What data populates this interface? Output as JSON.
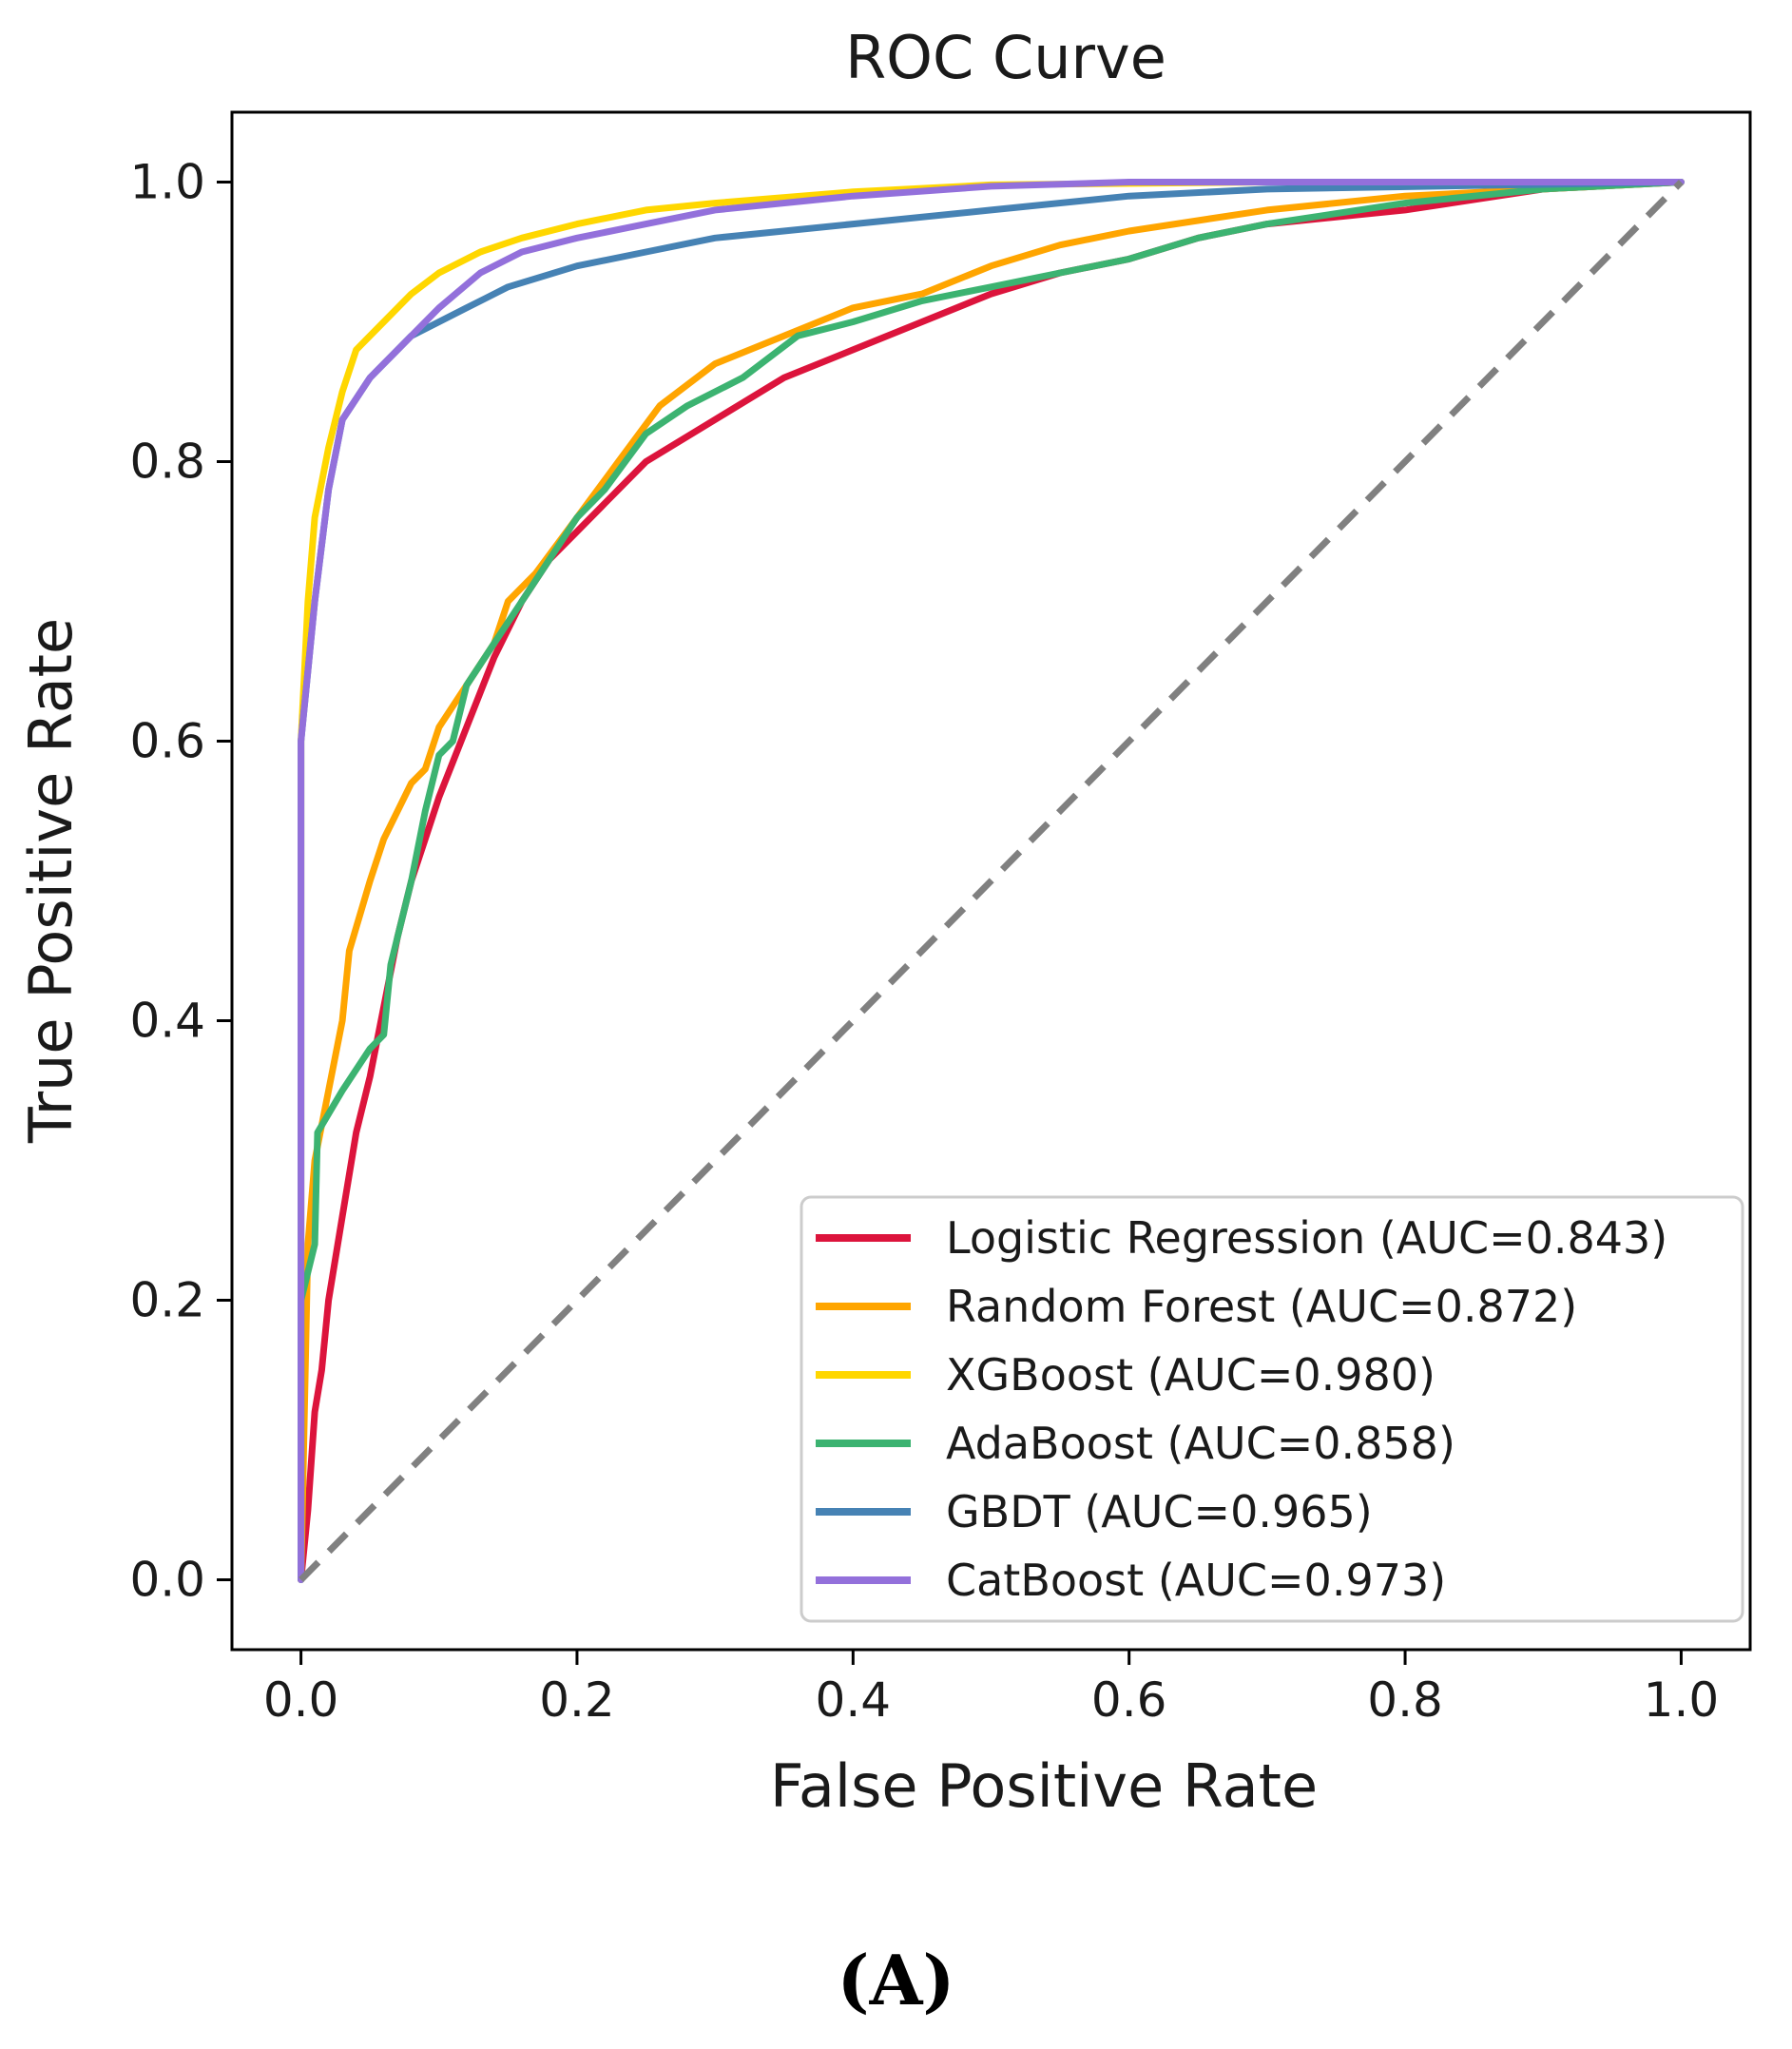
{
  "chart_data": {
    "type": "line",
    "title": "ROC Curve",
    "xlabel": "False Positive Rate",
    "ylabel": "True Positive Rate",
    "xlim": [
      -0.05,
      1.05
    ],
    "ylim": [
      -0.05,
      1.05
    ],
    "xticks": [
      "0.0",
      "0.2",
      "0.4",
      "0.6",
      "0.8",
      "1.0"
    ],
    "yticks": [
      "0.0",
      "0.2",
      "0.4",
      "0.6",
      "0.8",
      "1.0"
    ],
    "grid": false,
    "legend_position": "lower-right",
    "reference_line": {
      "name": "chance",
      "color": "#808080",
      "style": "dashed",
      "points": [
        [
          0,
          0
        ],
        [
          1,
          1
        ]
      ]
    },
    "series": [
      {
        "name": "Logistic Regression (AUC=0.843)",
        "color": "#DC143C",
        "points": [
          [
            0,
            0
          ],
          [
            0.005,
            0.05
          ],
          [
            0.01,
            0.12
          ],
          [
            0.015,
            0.15
          ],
          [
            0.02,
            0.2
          ],
          [
            0.03,
            0.26
          ],
          [
            0.04,
            0.32
          ],
          [
            0.05,
            0.36
          ],
          [
            0.06,
            0.41
          ],
          [
            0.07,
            0.46
          ],
          [
            0.08,
            0.5
          ],
          [
            0.09,
            0.53
          ],
          [
            0.1,
            0.56
          ],
          [
            0.12,
            0.61
          ],
          [
            0.14,
            0.66
          ],
          [
            0.16,
            0.7
          ],
          [
            0.18,
            0.73
          ],
          [
            0.2,
            0.75
          ],
          [
            0.22,
            0.77
          ],
          [
            0.25,
            0.8
          ],
          [
            0.3,
            0.83
          ],
          [
            0.35,
            0.86
          ],
          [
            0.4,
            0.88
          ],
          [
            0.45,
            0.9
          ],
          [
            0.5,
            0.92
          ],
          [
            0.55,
            0.935
          ],
          [
            0.6,
            0.945
          ],
          [
            0.65,
            0.96
          ],
          [
            0.7,
            0.97
          ],
          [
            0.8,
            0.98
          ],
          [
            0.9,
            0.995
          ],
          [
            1,
            1
          ]
        ]
      },
      {
        "name": "Random Forest (AUC=0.872)",
        "color": "#FFA500",
        "points": [
          [
            0,
            0
          ],
          [
            0.005,
            0.24
          ],
          [
            0.01,
            0.3
          ],
          [
            0.02,
            0.35
          ],
          [
            0.03,
            0.4
          ],
          [
            0.035,
            0.45
          ],
          [
            0.05,
            0.5
          ],
          [
            0.06,
            0.53
          ],
          [
            0.07,
            0.55
          ],
          [
            0.08,
            0.57
          ],
          [
            0.09,
            0.58
          ],
          [
            0.1,
            0.61
          ],
          [
            0.12,
            0.64
          ],
          [
            0.14,
            0.67
          ],
          [
            0.15,
            0.7
          ],
          [
            0.17,
            0.72
          ],
          [
            0.2,
            0.76
          ],
          [
            0.23,
            0.8
          ],
          [
            0.26,
            0.84
          ],
          [
            0.3,
            0.87
          ],
          [
            0.35,
            0.89
          ],
          [
            0.4,
            0.91
          ],
          [
            0.45,
            0.92
          ],
          [
            0.5,
            0.94
          ],
          [
            0.55,
            0.955
          ],
          [
            0.6,
            0.965
          ],
          [
            0.7,
            0.98
          ],
          [
            0.8,
            0.99
          ],
          [
            0.9,
            0.995
          ],
          [
            1,
            1
          ]
        ]
      },
      {
        "name": "XGBoost (AUC=0.980)",
        "color": "#FFD700",
        "points": [
          [
            0,
            0
          ],
          [
            0,
            0.6
          ],
          [
            0.005,
            0.7
          ],
          [
            0.01,
            0.76
          ],
          [
            0.02,
            0.81
          ],
          [
            0.03,
            0.85
          ],
          [
            0.04,
            0.88
          ],
          [
            0.06,
            0.9
          ],
          [
            0.08,
            0.92
          ],
          [
            0.1,
            0.935
          ],
          [
            0.13,
            0.95
          ],
          [
            0.16,
            0.96
          ],
          [
            0.2,
            0.97
          ],
          [
            0.25,
            0.98
          ],
          [
            0.3,
            0.985
          ],
          [
            0.4,
            0.993
          ],
          [
            0.5,
            0.998
          ],
          [
            0.7,
            1
          ],
          [
            1,
            1
          ]
        ]
      },
      {
        "name": "AdaBoost (AUC=0.858)",
        "color": "#3CB371",
        "points": [
          [
            0,
            0
          ],
          [
            0,
            0.2
          ],
          [
            0.01,
            0.24
          ],
          [
            0.012,
            0.32
          ],
          [
            0.03,
            0.35
          ],
          [
            0.05,
            0.38
          ],
          [
            0.06,
            0.39
          ],
          [
            0.065,
            0.44
          ],
          [
            0.08,
            0.5
          ],
          [
            0.09,
            0.55
          ],
          [
            0.1,
            0.59
          ],
          [
            0.11,
            0.6
          ],
          [
            0.12,
            0.64
          ],
          [
            0.14,
            0.67
          ],
          [
            0.16,
            0.7
          ],
          [
            0.18,
            0.73
          ],
          [
            0.2,
            0.76
          ],
          [
            0.22,
            0.78
          ],
          [
            0.25,
            0.82
          ],
          [
            0.28,
            0.84
          ],
          [
            0.32,
            0.86
          ],
          [
            0.36,
            0.89
          ],
          [
            0.4,
            0.9
          ],
          [
            0.45,
            0.915
          ],
          [
            0.5,
            0.925
          ],
          [
            0.55,
            0.935
          ],
          [
            0.6,
            0.945
          ],
          [
            0.65,
            0.96
          ],
          [
            0.7,
            0.97
          ],
          [
            0.8,
            0.985
          ],
          [
            0.9,
            0.995
          ],
          [
            1,
            1
          ]
        ]
      },
      {
        "name": "GBDT (AUC=0.965)",
        "color": "#4682B4",
        "points": [
          [
            0,
            0
          ],
          [
            0,
            0.6
          ],
          [
            0.01,
            0.7
          ],
          [
            0.02,
            0.78
          ],
          [
            0.03,
            0.83
          ],
          [
            0.05,
            0.86
          ],
          [
            0.08,
            0.89
          ],
          [
            0.1,
            0.9
          ],
          [
            0.12,
            0.91
          ],
          [
            0.15,
            0.925
          ],
          [
            0.2,
            0.94
          ],
          [
            0.25,
            0.95
          ],
          [
            0.3,
            0.96
          ],
          [
            0.4,
            0.97
          ],
          [
            0.5,
            0.98
          ],
          [
            0.6,
            0.99
          ],
          [
            0.7,
            0.995
          ],
          [
            1,
            1
          ]
        ]
      },
      {
        "name": "CatBoost (AUC=0.973)",
        "color": "#9370DB",
        "points": [
          [
            0,
            0
          ],
          [
            0,
            0.6
          ],
          [
            0.01,
            0.7
          ],
          [
            0.02,
            0.78
          ],
          [
            0.03,
            0.83
          ],
          [
            0.05,
            0.86
          ],
          [
            0.07,
            0.88
          ],
          [
            0.1,
            0.91
          ],
          [
            0.13,
            0.935
          ],
          [
            0.16,
            0.95
          ],
          [
            0.2,
            0.96
          ],
          [
            0.25,
            0.97
          ],
          [
            0.3,
            0.98
          ],
          [
            0.4,
            0.99
          ],
          [
            0.5,
            0.997
          ],
          [
            0.6,
            1
          ],
          [
            1,
            1
          ]
        ]
      }
    ]
  },
  "panel_label": "(A)"
}
